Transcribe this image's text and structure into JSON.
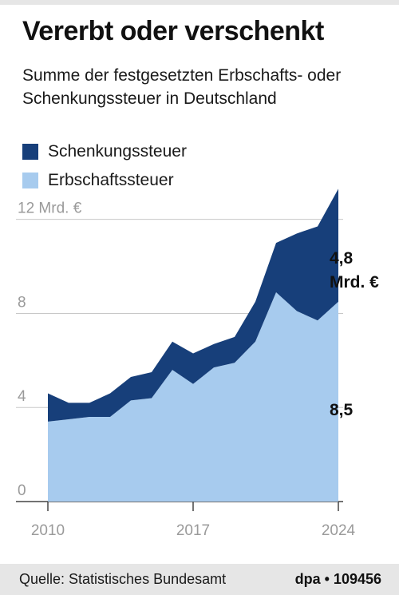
{
  "title": "Vererbt oder verschenkt",
  "subtitle": "Summe der festgesetzten Erbschafts- oder Schenkungssteuer in Deutschland",
  "legend": [
    {
      "label": "Schenkungssteuer",
      "color": "#173f7a"
    },
    {
      "label": "Erbschaftssteuer",
      "color": "#a7cbee"
    }
  ],
  "footer": {
    "source": "Quelle: Statistisches Bundesamt",
    "credit": "dpa • 109456"
  },
  "chart_data": {
    "type": "area",
    "stacked": true,
    "x": [
      2010,
      2011,
      2012,
      2013,
      2014,
      2015,
      2016,
      2017,
      2018,
      2019,
      2020,
      2021,
      2022,
      2023,
      2024
    ],
    "x_tick_labels": [
      "2010",
      "2017",
      "2024"
    ],
    "y_tick_labels": [
      "12 Mrd. €",
      "8",
      "4",
      "0"
    ],
    "y_ticks": [
      12,
      8,
      4,
      0
    ],
    "ylim": [
      0,
      12.6
    ],
    "series": [
      {
        "name": "Erbschaftssteuer",
        "color": "#a7cbee",
        "values": [
          3.4,
          3.5,
          3.6,
          3.6,
          4.3,
          4.4,
          5.6,
          5.0,
          5.7,
          5.9,
          6.8,
          8.9,
          8.1,
          7.7,
          8.5
        ]
      },
      {
        "name": "Schenkungssteuer",
        "color": "#173f7a",
        "values": [
          1.2,
          0.7,
          0.6,
          1.0,
          1.0,
          1.1,
          1.2,
          1.3,
          1.0,
          1.1,
          1.7,
          2.1,
          3.3,
          4.0,
          4.8
        ]
      }
    ],
    "annotations": [
      {
        "text": "4,8",
        "series": "Schenkungssteuer"
      },
      {
        "text": "Mrd. €",
        "series": "Schenkungssteuer"
      },
      {
        "text": "8,5",
        "series": "Erbschaftssteuer"
      }
    ],
    "grid": true
  }
}
